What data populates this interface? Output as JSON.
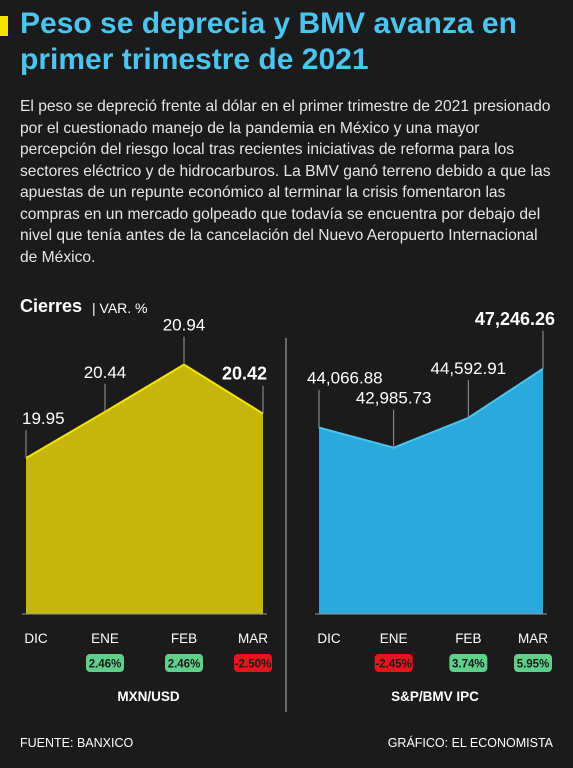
{
  "title": "Peso se deprecia y BMV avanza en primer trimestre de 2021",
  "intro": "El peso se depreció frente al dólar en el primer trimestre de 2021 presionado por el cuestionado manejo de la pandemia en México y una mayor percepción del riesgo local tras recientes iniciativas de reforma para los sectores eléctrico y de hidrocarburos. La BMV ganó terreno debido a que las apuestas de un repunte económico al terminar la crisis fomentaron las compras en un mercado golpeado que todavía se encuentra por debajo del nivel que tenía antes de la cancelación del Nuevo Aeropuerto Internacional de México.",
  "section": {
    "label": "Cierres",
    "sub": "| VAR. %"
  },
  "colors": {
    "title": "#4cc4f0",
    "accent": "#f5e400",
    "mxn_fill": "#c5b60c",
    "mxn_line": "#f5e400",
    "ipc_fill": "#2aa9dc",
    "ipc_line": "#4cc4f0",
    "pos": "#5fd08a",
    "neg": "#e8141c"
  },
  "chart_data": [
    {
      "type": "area",
      "title": "MXN/USD",
      "categories": [
        "DIC",
        "ENE",
        "FEB",
        "MAR"
      ],
      "values": [
        19.95,
        20.44,
        20.94,
        20.42
      ],
      "value_labels": [
        "19.95",
        "20.44",
        "20.94",
        "20.42"
      ],
      "change_labels": [
        "",
        "2.46%",
        "2.46%",
        "-2.50%"
      ],
      "change_signs": [
        "",
        "pos",
        "pos",
        "neg"
      ],
      "ylim": [
        18.3,
        21.2
      ]
    },
    {
      "type": "area",
      "title": "S&P/BMV IPC",
      "categories": [
        "DIC",
        "ENE",
        "FEB",
        "MAR"
      ],
      "values": [
        44066.88,
        42985.73,
        44592.91,
        47246.26
      ],
      "value_labels": [
        "44,066.88",
        "42,985.73",
        "44,592.91",
        "47,246.26"
      ],
      "change_labels": [
        "",
        "-2.45%",
        "3.74%",
        "5.95%"
      ],
      "change_signs": [
        "",
        "neg",
        "pos",
        "pos"
      ],
      "ylim": [
        34000,
        48800
      ]
    }
  ],
  "footer": {
    "source": "FUENTE: BANXICO",
    "credit": "GRÁFICO: EL ECONOMISTA"
  }
}
